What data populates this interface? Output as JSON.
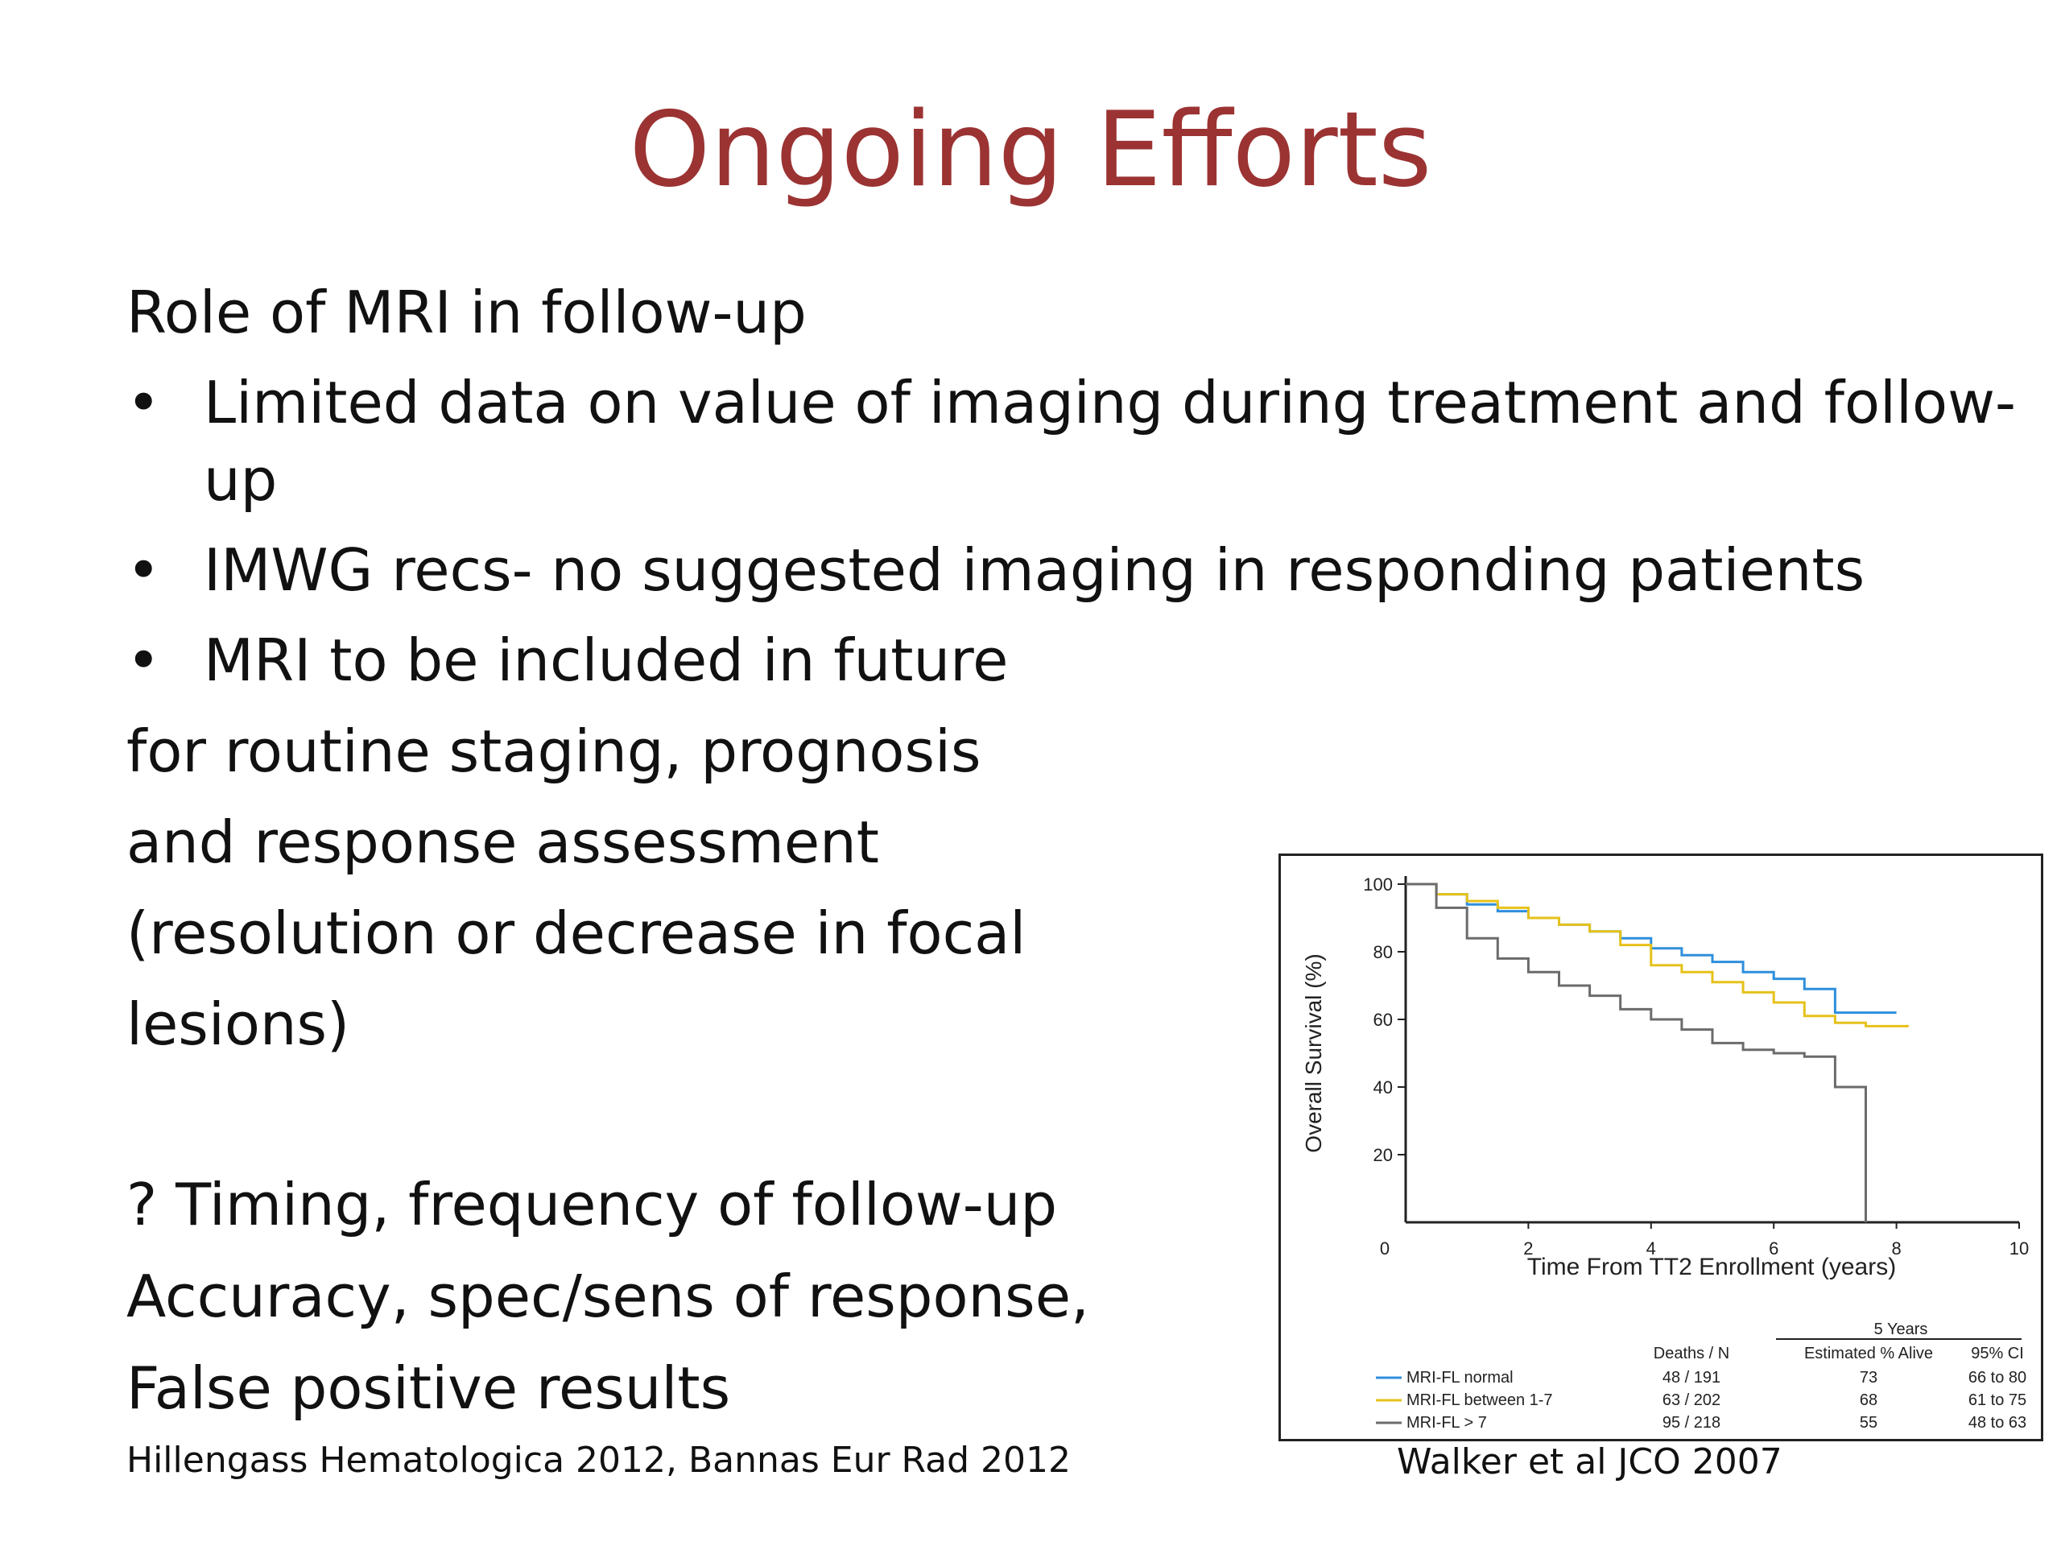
{
  "slide": {
    "title": "Ongoing Efforts",
    "heading": "Role of MRI in follow-up",
    "bullets": [
      "Limited data on value of imaging during treatment and follow-",
      "up",
      "IMWG recs- no suggested imaging in responding patients",
      "MRI to be included in future"
    ],
    "continuation": [
      "for routine staging, prognosis",
      "and response assessment",
      "(resolution or decrease in focal",
      "lesions)"
    ],
    "questions": [
      "? Timing, frequency of follow-up",
      "Accuracy, spec/sens of response,",
      "False positive results"
    ],
    "citation_left": "Hillengass Hematologica 2012, Bannas Eur Rad 2012",
    "citation_right": "Walker et al JCO 2007",
    "bullet_symbol": "•"
  },
  "colors": {
    "title": "#9b3333",
    "mri_normal": "#2f8fdc",
    "mri_1_7": "#e6c21a",
    "mri_gt7": "#6b6b6b"
  },
  "chart_data": {
    "type": "line",
    "xlabel": "Time From TT2 Enrollment (years)",
    "ylabel": "Overall Survival (%)",
    "xlim": [
      0,
      10
    ],
    "ylim": [
      0,
      100
    ],
    "x_ticks": [
      "0",
      "2",
      "4",
      "6",
      "8",
      "10"
    ],
    "y_ticks": [
      "20",
      "40",
      "60",
      "80",
      "100"
    ],
    "series": [
      {
        "name": "MRI-FL normal",
        "x": [
          0,
          0.5,
          1,
          1.5,
          2,
          2.5,
          3,
          3.5,
          4,
          4.5,
          5,
          5.5,
          6,
          6.5,
          7,
          7.5,
          8.0
        ],
        "y": [
          100,
          97,
          94,
          92,
          90,
          88,
          86,
          84,
          81,
          79,
          77,
          74,
          72,
          69,
          62,
          62,
          62
        ]
      },
      {
        "name": "MRI-FL between 1-7",
        "x": [
          0,
          0.5,
          1,
          1.5,
          2,
          2.5,
          3,
          3.5,
          4,
          4.5,
          5,
          5.5,
          6,
          6.5,
          7,
          7.5,
          8.2
        ],
        "y": [
          100,
          97,
          95,
          93,
          90,
          88,
          86,
          82,
          76,
          74,
          71,
          68,
          65,
          61,
          59,
          58,
          58
        ]
      },
      {
        "name": "MRI-FL > 7",
        "x": [
          0,
          0.5,
          1,
          1.5,
          2,
          2.5,
          3,
          3.5,
          4,
          4.5,
          5,
          5.5,
          6,
          6.5,
          7,
          7.5,
          7.5
        ],
        "y": [
          100,
          93,
          84,
          78,
          74,
          70,
          67,
          63,
          60,
          57,
          53,
          51,
          50,
          49,
          40,
          40,
          0
        ]
      }
    ],
    "table": {
      "group_header": "5 Years",
      "columns": [
        "Deaths / N",
        "Estimated % Alive",
        "95% CI"
      ],
      "rows": [
        {
          "label": "MRI-FL normal",
          "deaths_n": "48 / 191",
          "alive": "73",
          "ci": "66 to 80"
        },
        {
          "label": "MRI-FL between 1-7",
          "deaths_n": "63 / 202",
          "alive": "68",
          "ci": "61 to 75"
        },
        {
          "label": "MRI-FL > 7",
          "deaths_n": "95 / 218",
          "alive": "55",
          "ci": "48 to 63"
        }
      ]
    },
    "grid": false
  }
}
